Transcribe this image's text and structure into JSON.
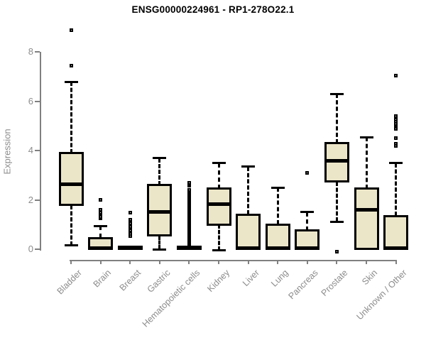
{
  "page": {
    "background": "#FFFFFF"
  },
  "chart_data": {
    "type": "box",
    "title": "ENSG00000224961 - RP1-278O22.1",
    "ylabel": "Expression",
    "xlabel": "",
    "ylim": [
      -0.3,
      9.3
    ],
    "yticks": [
      0,
      2,
      4,
      6,
      8
    ],
    "ytick_labels": [
      "0",
      "2",
      "4",
      "6",
      "8"
    ],
    "grid": false,
    "legend": null,
    "colors": {
      "box_fill": "#ECE6C9",
      "box_stroke": "#000000",
      "axis": "#808080",
      "tick_text": "#8C8C8C",
      "title_text": "#000000"
    },
    "categories": [
      "Bladder",
      "Brain",
      "Breast",
      "Gastric",
      "Hematopoietic cells",
      "Kidney",
      "Liver",
      "Lung",
      "Pancreas",
      "Prostate",
      "Skin",
      "Unknown / Other"
    ],
    "series": [
      {
        "label": "Bladder",
        "whisker_low": 0.15,
        "q1": 1.8,
        "median": 2.65,
        "q3": 3.9,
        "whisker_high": 6.8,
        "outliers": [
          7.45,
          8.9
        ]
      },
      {
        "label": "Brain",
        "whisker_low": 0.0,
        "q1": 0.0,
        "median": 0.04,
        "q3": 0.45,
        "whisker_high": 0.95,
        "outliers": [
          1.25,
          1.32,
          1.42,
          1.48,
          1.6,
          2.0
        ]
      },
      {
        "label": "Breast",
        "whisker_low": 0.0,
        "q1": 0.0,
        "median": 0.04,
        "q3": 0.1,
        "whisker_high": 0.1,
        "outliers": [
          0.52,
          0.62,
          0.7,
          0.76,
          0.84,
          0.9,
          0.98,
          1.06,
          1.14,
          1.2,
          1.48
        ]
      },
      {
        "label": "Gastric",
        "whisker_low": 0.0,
        "q1": 0.55,
        "median": 1.5,
        "q3": 2.6,
        "whisker_high": 3.7,
        "outliers": []
      },
      {
        "label": "Hematopoietic cells",
        "whisker_low": 0.0,
        "q1": 0.0,
        "median": 0.04,
        "q3": 0.1,
        "whisker_high": 0.1,
        "outliers": [
          0.2,
          0.25,
          0.3,
          0.35,
          0.4,
          0.45,
          0.5,
          0.55,
          0.6,
          0.65,
          0.7,
          0.75,
          0.8,
          0.85,
          0.9,
          0.95,
          1.0,
          1.05,
          1.1,
          1.15,
          1.2,
          1.25,
          1.3,
          1.35,
          1.4,
          1.45,
          1.5,
          1.55,
          1.6,
          1.65,
          1.7,
          1.75,
          1.8,
          1.85,
          1.9,
          1.95,
          2.0,
          2.05,
          2.1,
          2.15,
          2.2,
          2.25,
          2.3,
          2.35,
          2.4,
          2.58,
          2.64,
          2.7
        ]
      },
      {
        "label": "Kidney",
        "whisker_low": -0.05,
        "q1": 1.0,
        "median": 1.82,
        "q3": 2.45,
        "whisker_high": 3.5,
        "outliers": []
      },
      {
        "label": "Liver",
        "whisker_low": 0.0,
        "q1": 0.0,
        "median": 0.05,
        "q3": 1.4,
        "whisker_high": 3.35,
        "outliers": []
      },
      {
        "label": "Lung",
        "whisker_low": 0.0,
        "q1": 0.0,
        "median": 0.05,
        "q3": 1.0,
        "whisker_high": 2.5,
        "outliers": []
      },
      {
        "label": "Pancreas",
        "whisker_low": 0.0,
        "q1": 0.0,
        "median": 0.05,
        "q3": 0.75,
        "whisker_high": 1.5,
        "outliers": [
          3.1
        ]
      },
      {
        "label": "Prostate",
        "whisker_low": 1.12,
        "q1": 2.75,
        "median": 3.6,
        "q3": 4.3,
        "whisker_high": 6.3,
        "outliers": [
          -0.1
        ]
      },
      {
        "label": "Skin",
        "whisker_low": 0.0,
        "q1": 0.0,
        "median": 1.6,
        "q3": 2.45,
        "whisker_high": 4.55,
        "outliers": []
      },
      {
        "label": "Unknown / Other",
        "whisker_low": 0.0,
        "q1": 0.0,
        "median": 0.05,
        "q3": 1.35,
        "whisker_high": 3.5,
        "outliers": [
          4.2,
          4.28,
          4.5,
          4.88,
          4.96,
          5.04,
          5.1,
          5.18,
          5.26,
          5.4,
          7.05
        ]
      }
    ]
  }
}
